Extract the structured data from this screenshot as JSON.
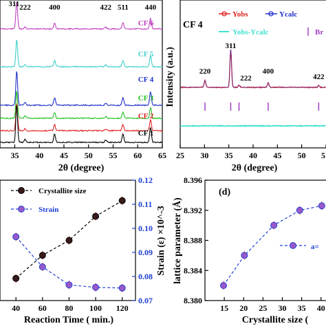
{
  "chart_data": [
    {
      "panel": "a",
      "type": "line",
      "xlabel": "2θ (degree)",
      "x_ticks": [
        "35",
        "40",
        "45",
        "50",
        "55",
        "60",
        "65"
      ],
      "xlim": [
        32,
        65
      ],
      "peak_labels": [
        "311",
        "222",
        "400",
        "422",
        "511",
        "440"
      ],
      "peak_positions": [
        35.4,
        37.1,
        43.1,
        53.5,
        57.0,
        62.6
      ],
      "series": [
        {
          "name": "CF 6",
          "color": "#c040c0"
        },
        {
          "name": "CF 5",
          "color": "#40d0c8"
        },
        {
          "name": "CF 4",
          "color": "#2030c8"
        },
        {
          "name": "CF 3",
          "color": "#20c020"
        },
        {
          "name": "CF 2",
          "color": "#e02020"
        },
        {
          "name": "CF 1",
          "color": "#000000"
        }
      ]
    },
    {
      "panel": "b",
      "type": "line",
      "title": "CF 4",
      "xlabel": "2θ (degree)",
      "ylabel": "Intensity (a.u.)",
      "x_ticks": [
        "25",
        "30",
        "35",
        "40",
        "45",
        "50",
        "5"
      ],
      "xlim": [
        25,
        55
      ],
      "peak_labels": [
        "220",
        "311",
        "222",
        "400",
        "422"
      ],
      "peak_positions": [
        30.1,
        35.4,
        37.1,
        43.1,
        53.5
      ],
      "legend": [
        "Yobs",
        "Ycalc",
        "Yobs-Ycalc",
        "Br"
      ],
      "colors": {
        "yobs": "#e02020",
        "ycalc": "#2030c8",
        "diff": "#40e0d0",
        "bragg": "#a040c0"
      }
    },
    {
      "panel": "c",
      "type": "line",
      "xlabel": "Reaction Time ( min.)",
      "ylabel_right": "Strain (ε) ×10^-3",
      "x_ticks": [
        "40",
        "60",
        "80",
        "100",
        "120"
      ],
      "x": [
        40,
        60,
        80,
        100,
        120
      ],
      "right_ticks": [
        "0.07",
        "0.08",
        "0.09",
        "0.10",
        "0.11",
        "0.12"
      ],
      "ylim_right": [
        0.07,
        0.12
      ],
      "series": [
        {
          "name": "Crystallite size",
          "color": "#000000",
          "values": [
            0.0792,
            0.0888,
            0.095,
            0.105,
            0.1115
          ]
        },
        {
          "name": "Strain",
          "color": "#1f3fd6",
          "values": [
            0.0965,
            0.084,
            0.0765,
            0.0755,
            0.0752
          ]
        }
      ]
    },
    {
      "panel": "d",
      "type": "scatter",
      "label": "(d)",
      "xlabel": "Crystallite size (",
      "ylabel": "lattice parameter (Å)",
      "x_ticks": [
        "15",
        "20",
        "25",
        "30",
        "35",
        "40"
      ],
      "y_ticks": [
        "8.380",
        "8.384",
        "8.388",
        "8.392",
        "8.396"
      ],
      "xlim": [
        10,
        42
      ],
      "ylim": [
        8.38,
        8.396
      ],
      "legend": [
        "a="
      ],
      "x": [
        14.8,
        20.2,
        27.8,
        34.5,
        40.2
      ],
      "y": [
        8.382,
        8.386,
        8.39,
        8.392,
        8.3926
      ],
      "color": "#1f3fd6"
    }
  ]
}
